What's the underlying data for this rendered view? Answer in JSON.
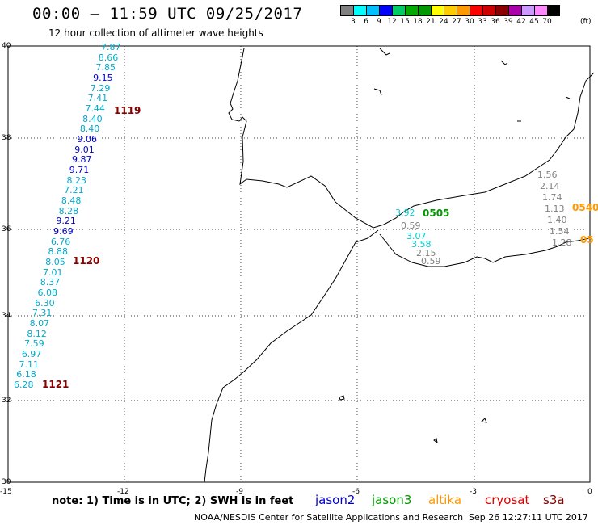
{
  "header": {
    "title": "00:00 – 11:59 UTC 09/25/2017",
    "subtitle": "12 hour collection of altimeter wave heights"
  },
  "colorbar": {
    "colors": [
      "#808080",
      "#00ffff",
      "#00bfff",
      "#0000ff",
      "#00cc66",
      "#00aa00",
      "#009900",
      "#ffff00",
      "#ffcc00",
      "#ff9900",
      "#ff0000",
      "#cc0000",
      "#880000",
      "#aa00aa",
      "#cc99ff",
      "#ff88ff",
      "#000000"
    ],
    "labels": [
      "3",
      "6",
      "9",
      "12",
      "15",
      "18",
      "21",
      "24",
      "27",
      "30",
      "33",
      "36",
      "39",
      "42",
      "45",
      "70"
    ],
    "unit": "(ft)"
  },
  "axes": {
    "y_ticks": [
      "40",
      "38",
      "36",
      "34",
      "32",
      "30"
    ],
    "x_ticks": [
      "-15",
      "-12",
      "-9",
      "-6",
      "-3",
      "0"
    ]
  },
  "note": "note: 1) Time is in UTC; 2) SWH is in feet",
  "legend": [
    {
      "name": "jason2",
      "color": "#0000cc"
    },
    {
      "name": "jason3",
      "color": "#009900"
    },
    {
      "name": "altika",
      "color": "#ff9900"
    },
    {
      "name": "cryosat",
      "color": "#dd0000"
    },
    {
      "name": "s3a",
      "color": "#880000"
    }
  ],
  "footer": {
    "source": "NOAA/NESDIS Center for Satellite Applications and Research",
    "timestamp": "Sep 26 12:27:11 UTC 2017"
  },
  "track_west": [
    {
      "v": "7.87",
      "c": "#00aacc"
    },
    {
      "v": "8.66",
      "c": "#00aacc"
    },
    {
      "v": "7.85",
      "c": "#00aacc"
    },
    {
      "v": "9.15",
      "c": "#0000cc"
    },
    {
      "v": "7.29",
      "c": "#00aacc"
    },
    {
      "v": "7.41",
      "c": "#00aacc"
    },
    {
      "v": "7.44",
      "c": "#00aacc"
    },
    {
      "v": "8.40",
      "c": "#00aacc"
    },
    {
      "v": "8.40",
      "c": "#00aacc"
    },
    {
      "v": "9.06",
      "c": "#0000cc"
    },
    {
      "v": "9.01",
      "c": "#0000cc"
    },
    {
      "v": "9.87",
      "c": "#0000cc"
    },
    {
      "v": "9.71",
      "c": "#0000cc"
    },
    {
      "v": "8.23",
      "c": "#00aacc"
    },
    {
      "v": "7.21",
      "c": "#00aacc"
    },
    {
      "v": "8.48",
      "c": "#00aacc"
    },
    {
      "v": "8.28",
      "c": "#00aacc"
    },
    {
      "v": "9.21",
      "c": "#0000cc"
    },
    {
      "v": "9.69",
      "c": "#0000cc"
    },
    {
      "v": "6.76",
      "c": "#00aacc"
    },
    {
      "v": "8.88",
      "c": "#00aacc"
    },
    {
      "v": "8.05",
      "c": "#00aacc"
    },
    {
      "v": "7.01",
      "c": "#00aacc"
    },
    {
      "v": "8.37",
      "c": "#00aacc"
    },
    {
      "v": "6.08",
      "c": "#00aacc"
    },
    {
      "v": "6.30",
      "c": "#00aacc"
    },
    {
      "v": "7.31",
      "c": "#00aacc"
    },
    {
      "v": "8.07",
      "c": "#00aacc"
    },
    {
      "v": "8.12",
      "c": "#00aacc"
    },
    {
      "v": "7.59",
      "c": "#00aacc"
    },
    {
      "v": "6.97",
      "c": "#00aacc"
    },
    {
      "v": "7.11",
      "c": "#00aacc"
    },
    {
      "v": "6.18",
      "c": "#00aacc"
    },
    {
      "v": "6.28",
      "c": "#00aacc"
    }
  ],
  "track_west_times": [
    "1119",
    "1120",
    "1121"
  ],
  "track_med_gray": [
    "1.56",
    "2.14",
    "1.74",
    "1.13",
    "1.40",
    "1.54",
    "1.28"
  ],
  "track_med_times": [
    "0540",
    "05"
  ],
  "track_alboran": [
    {
      "v": "3.92",
      "c": "#00cccc"
    },
    {
      "v": "0.59",
      "c": "#808080"
    },
    {
      "v": "3.07",
      "c": "#00cccc"
    },
    {
      "v": "3.58",
      "c": "#00cccc"
    },
    {
      "v": "2.15",
      "c": "#808080"
    },
    {
      "v": "0.59",
      "c": "#808080"
    }
  ],
  "track_alboran_time": "0505"
}
